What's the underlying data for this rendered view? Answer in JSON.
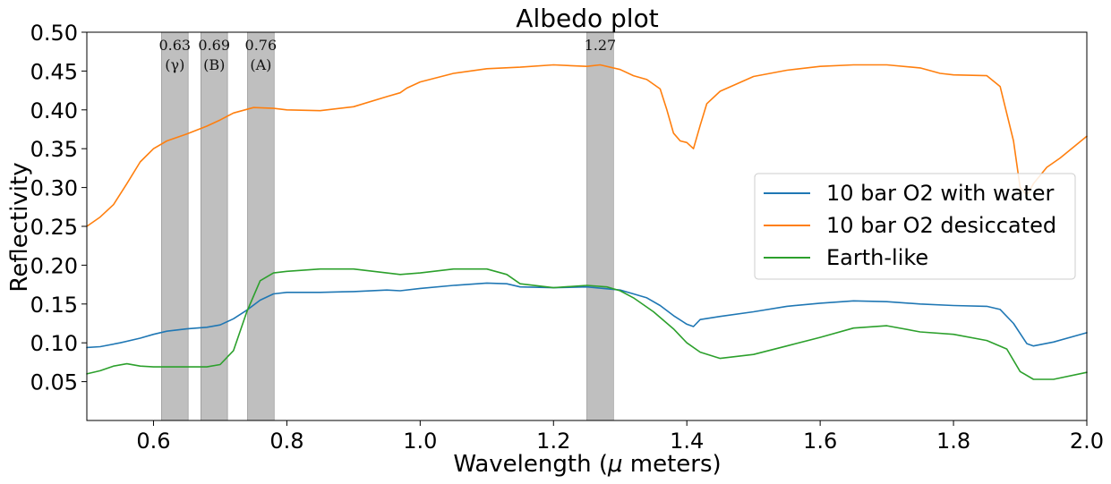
{
  "chart_data": {
    "type": "line",
    "title": "Albedo plot",
    "xlabel_prefix": "Wavelength (",
    "xlabel_symbol": "μ",
    "xlabel_suffix": " meters)",
    "ylabel": "Reflectivity",
    "xlim": [
      0.5,
      2.0
    ],
    "ylim": [
      0.0,
      0.5
    ],
    "xticks": [
      0.6,
      0.8,
      1.0,
      1.2,
      1.4,
      1.6,
      1.8,
      2.0
    ],
    "xtick_labels": [
      "0.6",
      "0.8",
      "1.0",
      "1.2",
      "1.4",
      "1.6",
      "1.8",
      "2.0"
    ],
    "yticks": [
      0.05,
      0.1,
      0.15,
      0.2,
      0.25,
      0.3,
      0.35,
      0.4,
      0.45,
      0.5
    ],
    "ytick_labels": [
      "0.05",
      "0.10",
      "0.15",
      "0.20",
      "0.25",
      "0.30",
      "0.35",
      "0.40",
      "0.45",
      "0.50"
    ],
    "grid": false,
    "legend_position": "center-right",
    "bands": [
      {
        "x0": 0.612,
        "x1": 0.652,
        "line1": "0.63",
        "line2": "(γ)"
      },
      {
        "x0": 0.671,
        "x1": 0.711,
        "line1": "0.69",
        "line2": "(B)"
      },
      {
        "x0": 0.741,
        "x1": 0.781,
        "line1": "0.76",
        "line2": "(A)"
      },
      {
        "x0": 1.25,
        "x1": 1.29,
        "line1": "1.27",
        "line2": ""
      }
    ],
    "band_color": "#bfbfbf",
    "series": [
      {
        "name": "10 bar O2 with water",
        "color": "#1f77b4",
        "points": [
          [
            0.5,
            0.094
          ],
          [
            0.52,
            0.095
          ],
          [
            0.55,
            0.1
          ],
          [
            0.58,
            0.106
          ],
          [
            0.6,
            0.111
          ],
          [
            0.62,
            0.115
          ],
          [
            0.65,
            0.118
          ],
          [
            0.68,
            0.12
          ],
          [
            0.7,
            0.123
          ],
          [
            0.72,
            0.131
          ],
          [
            0.74,
            0.142
          ],
          [
            0.76,
            0.155
          ],
          [
            0.78,
            0.163
          ],
          [
            0.8,
            0.165
          ],
          [
            0.85,
            0.165
          ],
          [
            0.9,
            0.166
          ],
          [
            0.95,
            0.168
          ],
          [
            0.97,
            0.167
          ],
          [
            1.0,
            0.17
          ],
          [
            1.05,
            0.174
          ],
          [
            1.1,
            0.177
          ],
          [
            1.13,
            0.176
          ],
          [
            1.15,
            0.172
          ],
          [
            1.2,
            0.171
          ],
          [
            1.25,
            0.172
          ],
          [
            1.3,
            0.168
          ],
          [
            1.32,
            0.163
          ],
          [
            1.34,
            0.158
          ],
          [
            1.36,
            0.148
          ],
          [
            1.38,
            0.135
          ],
          [
            1.4,
            0.124
          ],
          [
            1.41,
            0.121
          ],
          [
            1.42,
            0.13
          ],
          [
            1.45,
            0.134
          ],
          [
            1.5,
            0.14
          ],
          [
            1.55,
            0.147
          ],
          [
            1.6,
            0.151
          ],
          [
            1.65,
            0.154
          ],
          [
            1.7,
            0.153
          ],
          [
            1.75,
            0.15
          ],
          [
            1.8,
            0.148
          ],
          [
            1.85,
            0.147
          ],
          [
            1.87,
            0.143
          ],
          [
            1.89,
            0.125
          ],
          [
            1.91,
            0.099
          ],
          [
            1.92,
            0.096
          ],
          [
            1.95,
            0.101
          ],
          [
            2.0,
            0.113
          ]
        ]
      },
      {
        "name": "10 bar O2 desiccated",
        "color": "#ff7f0e",
        "points": [
          [
            0.5,
            0.25
          ],
          [
            0.52,
            0.262
          ],
          [
            0.54,
            0.278
          ],
          [
            0.56,
            0.305
          ],
          [
            0.58,
            0.333
          ],
          [
            0.6,
            0.35
          ],
          [
            0.62,
            0.36
          ],
          [
            0.65,
            0.369
          ],
          [
            0.68,
            0.379
          ],
          [
            0.7,
            0.387
          ],
          [
            0.72,
            0.396
          ],
          [
            0.75,
            0.403
          ],
          [
            0.78,
            0.402
          ],
          [
            0.8,
            0.4
          ],
          [
            0.85,
            0.399
          ],
          [
            0.9,
            0.404
          ],
          [
            0.95,
            0.417
          ],
          [
            0.97,
            0.422
          ],
          [
            0.98,
            0.428
          ],
          [
            1.0,
            0.436
          ],
          [
            1.05,
            0.447
          ],
          [
            1.1,
            0.453
          ],
          [
            1.15,
            0.455
          ],
          [
            1.2,
            0.458
          ],
          [
            1.25,
            0.456
          ],
          [
            1.27,
            0.458
          ],
          [
            1.3,
            0.452
          ],
          [
            1.32,
            0.444
          ],
          [
            1.34,
            0.439
          ],
          [
            1.36,
            0.427
          ],
          [
            1.37,
            0.4
          ],
          [
            1.38,
            0.37
          ],
          [
            1.39,
            0.36
          ],
          [
            1.4,
            0.358
          ],
          [
            1.41,
            0.35
          ],
          [
            1.42,
            0.38
          ],
          [
            1.43,
            0.408
          ],
          [
            1.45,
            0.424
          ],
          [
            1.5,
            0.443
          ],
          [
            1.55,
            0.451
          ],
          [
            1.6,
            0.456
          ],
          [
            1.65,
            0.458
          ],
          [
            1.7,
            0.458
          ],
          [
            1.75,
            0.454
          ],
          [
            1.78,
            0.447
          ],
          [
            1.8,
            0.445
          ],
          [
            1.85,
            0.444
          ],
          [
            1.87,
            0.43
          ],
          [
            1.89,
            0.36
          ],
          [
            1.9,
            0.3
          ],
          [
            1.91,
            0.29
          ],
          [
            1.92,
            0.305
          ],
          [
            1.94,
            0.326
          ],
          [
            1.96,
            0.338
          ],
          [
            2.0,
            0.366
          ]
        ]
      },
      {
        "name": "Earth-like",
        "color": "#2ca02c",
        "points": [
          [
            0.5,
            0.06
          ],
          [
            0.52,
            0.064
          ],
          [
            0.54,
            0.07
          ],
          [
            0.56,
            0.073
          ],
          [
            0.58,
            0.07
          ],
          [
            0.6,
            0.069
          ],
          [
            0.62,
            0.069
          ],
          [
            0.65,
            0.069
          ],
          [
            0.68,
            0.069
          ],
          [
            0.7,
            0.072
          ],
          [
            0.72,
            0.09
          ],
          [
            0.74,
            0.14
          ],
          [
            0.76,
            0.18
          ],
          [
            0.78,
            0.19
          ],
          [
            0.8,
            0.192
          ],
          [
            0.85,
            0.195
          ],
          [
            0.9,
            0.195
          ],
          [
            0.95,
            0.19
          ],
          [
            0.97,
            0.188
          ],
          [
            1.0,
            0.19
          ],
          [
            1.05,
            0.195
          ],
          [
            1.1,
            0.195
          ],
          [
            1.13,
            0.188
          ],
          [
            1.15,
            0.176
          ],
          [
            1.2,
            0.171
          ],
          [
            1.25,
            0.174
          ],
          [
            1.28,
            0.172
          ],
          [
            1.3,
            0.167
          ],
          [
            1.32,
            0.158
          ],
          [
            1.35,
            0.14
          ],
          [
            1.38,
            0.118
          ],
          [
            1.4,
            0.1
          ],
          [
            1.42,
            0.088
          ],
          [
            1.45,
            0.08
          ],
          [
            1.5,
            0.085
          ],
          [
            1.55,
            0.096
          ],
          [
            1.6,
            0.107
          ],
          [
            1.65,
            0.119
          ],
          [
            1.7,
            0.122
          ],
          [
            1.75,
            0.114
          ],
          [
            1.8,
            0.111
          ],
          [
            1.85,
            0.103
          ],
          [
            1.88,
            0.092
          ],
          [
            1.9,
            0.063
          ],
          [
            1.92,
            0.053
          ],
          [
            1.95,
            0.053
          ],
          [
            2.0,
            0.062
          ]
        ]
      }
    ]
  }
}
